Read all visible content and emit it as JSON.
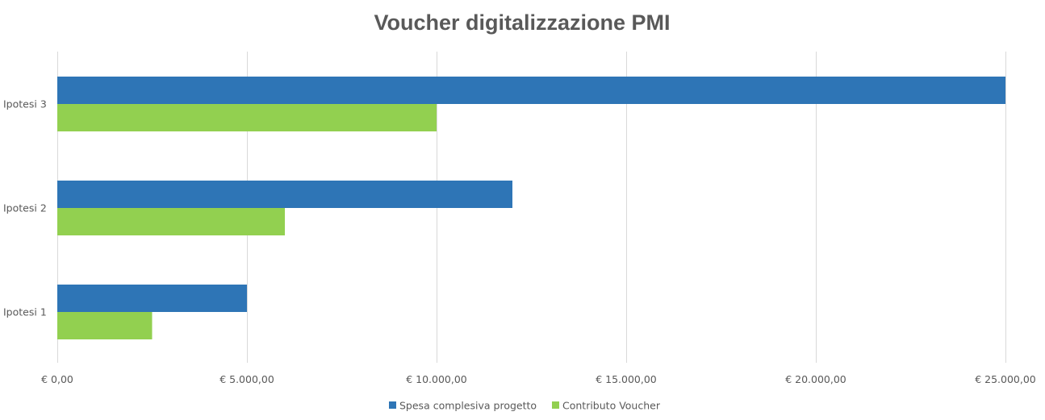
{
  "chart_data": {
    "type": "bar",
    "orientation": "horizontal",
    "title": "Voucher digitalizzazione PMI",
    "categories": [
      "Ipotesi 1",
      "Ipotesi 2",
      "Ipotesi 3"
    ],
    "series": [
      {
        "name": "Spesa complesiva progetto",
        "values": [
          5000,
          12000,
          25000
        ],
        "color": "#2e75b6"
      },
      {
        "name": "Contributo Voucher",
        "values": [
          2500,
          6000,
          10000
        ],
        "color": "#92d050"
      }
    ],
    "xlim": [
      0,
      25000
    ],
    "x_ticks": [
      0,
      5000,
      10000,
      15000,
      20000,
      25000
    ],
    "x_tick_labels": [
      "€ 0,00",
      "€ 5.000,00",
      "€ 10.000,00",
      "€ 15.000,00",
      "€ 20.000,00",
      "€ 25.000,00"
    ],
    "xlabel": "",
    "ylabel": "",
    "grid": "vertical",
    "legend_position": "bottom"
  }
}
